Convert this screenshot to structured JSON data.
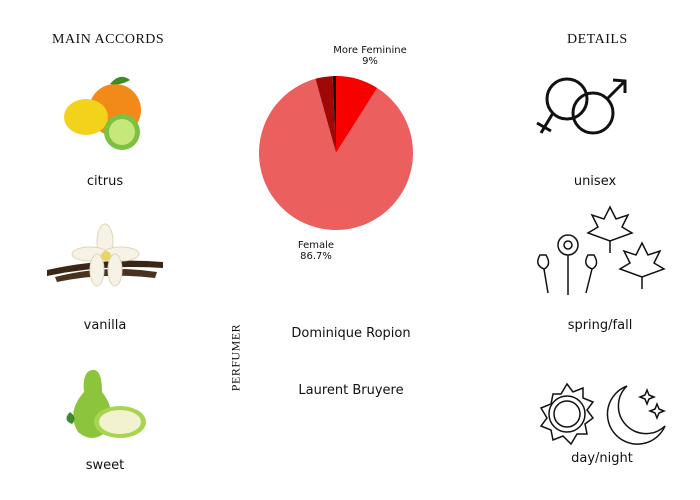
{
  "accords": {
    "title": "Main Accords",
    "items": [
      {
        "label": "citrus",
        "icon": "citrus-fruit-icon"
      },
      {
        "label": "vanilla",
        "icon": "vanilla-flower-icon"
      },
      {
        "label": "sweet",
        "icon": "pear-icon"
      }
    ]
  },
  "details": {
    "title": "Details",
    "items": [
      {
        "label": "unisex",
        "icon": "gender-symbols-icon"
      },
      {
        "label": "spring/fall",
        "icon": "flowers-leaves-icon"
      },
      {
        "label": "day/night",
        "icon": "sun-moon-icon"
      }
    ]
  },
  "perfumer": {
    "title": "Perfumer",
    "names": [
      "Dominique Ropion",
      "Laurent Bruyere"
    ]
  },
  "chart_data": {
    "type": "pie",
    "start": "top",
    "direction": "clockwise",
    "slices": [
      {
        "label": "More Feminine",
        "value": 9,
        "display": "9%",
        "color": "#f70000"
      },
      {
        "label": "Female",
        "value": 86.7,
        "display": "86.7%",
        "color": "#eb5f5f"
      },
      {
        "label": "",
        "value": 3.6,
        "color": "#a00808"
      },
      {
        "label": "",
        "value": 0.7,
        "color": "#111111"
      }
    ]
  }
}
